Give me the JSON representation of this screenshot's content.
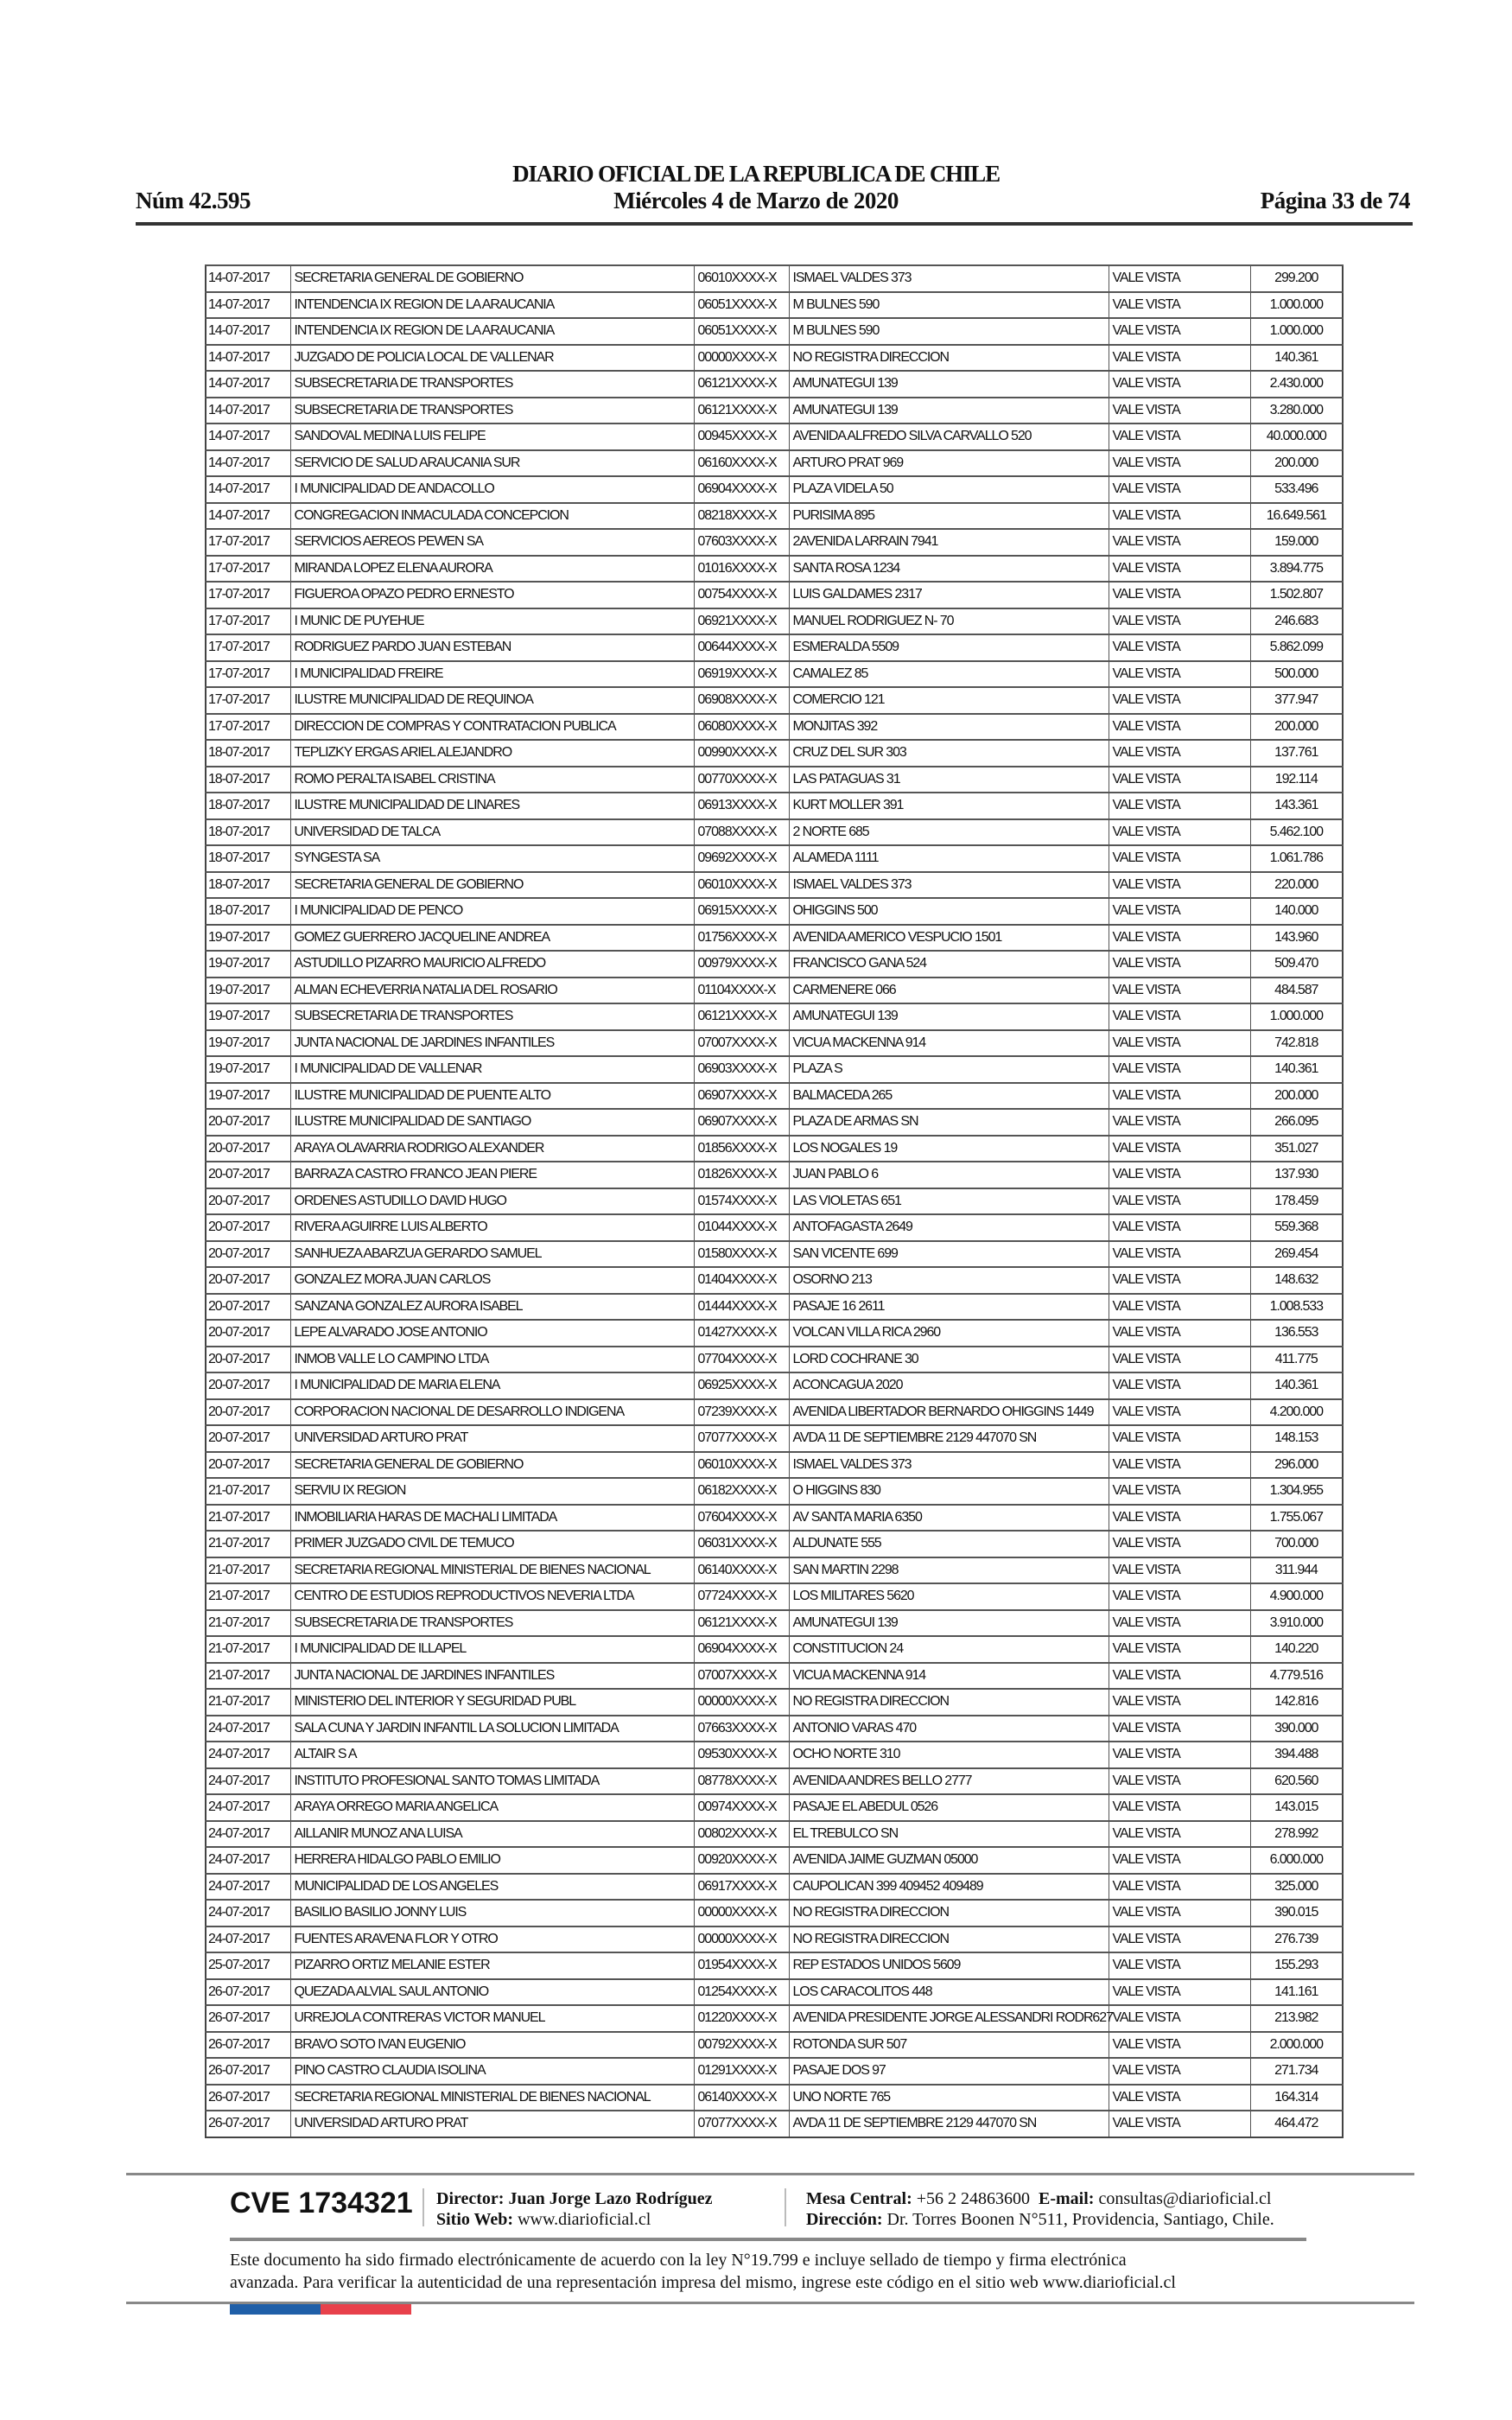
{
  "header": {
    "title": "DIARIO OFICIAL DE LA REPUBLICA DE CHILE",
    "number": "Núm 42.595",
    "date": "Miércoles 4 de Marzo de 2020",
    "page": "Página 33 de 74"
  },
  "table": {
    "rows": [
      [
        "14-07-2017",
        "SECRETARIA GENERAL DE GOBIERNO",
        "06010XXXX-X",
        "ISMAEL VALDES 373",
        "VALE VISTA",
        "299.200"
      ],
      [
        "14-07-2017",
        "INTENDENCIA IX REGION DE LA ARAUCANIA",
        "06051XXXX-X",
        "M BULNES 590",
        "VALE VISTA",
        "1.000.000"
      ],
      [
        "14-07-2017",
        "INTENDENCIA IX REGION DE LA ARAUCANIA",
        "06051XXXX-X",
        "M BULNES 590",
        "VALE VISTA",
        "1.000.000"
      ],
      [
        "14-07-2017",
        "JUZGADO DE POLICIA LOCAL DE VALLENAR",
        "00000XXXX-X",
        "NO REGISTRA DIRECCION",
        "VALE VISTA",
        "140.361"
      ],
      [
        "14-07-2017",
        "SUBSECRETARIA DE TRANSPORTES",
        "06121XXXX-X",
        "AMUNATEGUI 139",
        "VALE VISTA",
        "2.430.000"
      ],
      [
        "14-07-2017",
        "SUBSECRETARIA DE TRANSPORTES",
        "06121XXXX-X",
        "AMUNATEGUI 139",
        "VALE VISTA",
        "3.280.000"
      ],
      [
        "14-07-2017",
        "SANDOVAL MEDINA LUIS FELIPE",
        "00945XXXX-X",
        "AVENIDA ALFREDO SILVA CARVALLO 520",
        "VALE VISTA",
        "40.000.000"
      ],
      [
        "14-07-2017",
        "SERVICIO DE SALUD ARAUCANIA SUR",
        "06160XXXX-X",
        "ARTURO PRAT 969",
        "VALE VISTA",
        "200.000"
      ],
      [
        "14-07-2017",
        "I MUNICIPALIDAD DE ANDACOLLO",
        "06904XXXX-X",
        "PLAZA VIDELA 50",
        "VALE VISTA",
        "533.496"
      ],
      [
        "14-07-2017",
        "CONGREGACION INMACULADA CONCEPCION",
        "08218XXXX-X",
        "PURISIMA 895",
        "VALE VISTA",
        "16.649.561"
      ],
      [
        "17-07-2017",
        "SERVICIOS AEREOS PEWEN SA",
        "07603XXXX-X",
        "2AVENIDA LARRAIN 7941",
        "VALE VISTA",
        "159.000"
      ],
      [
        "17-07-2017",
        "MIRANDA LOPEZ ELENA AURORA",
        "01016XXXX-X",
        "SANTA ROSA 1234",
        "VALE VISTA",
        "3.894.775"
      ],
      [
        "17-07-2017",
        "FIGUEROA OPAZO PEDRO ERNESTO",
        "00754XXXX-X",
        "LUIS GALDAMES 2317",
        "VALE VISTA",
        "1.502.807"
      ],
      [
        "17-07-2017",
        "I MUNIC DE PUYEHUE",
        "06921XXXX-X",
        "MANUEL RODRIGUEZ N- 70",
        "VALE VISTA",
        "246.683"
      ],
      [
        "17-07-2017",
        "RODRIGUEZ PARDO JUAN ESTEBAN",
        "00644XXXX-X",
        "ESMERALDA 5509",
        "VALE VISTA",
        "5.862.099"
      ],
      [
        "17-07-2017",
        "I MUNICIPALIDAD FREIRE",
        "06919XXXX-X",
        "CAMALEZ 85",
        "VALE VISTA",
        "500.000"
      ],
      [
        "17-07-2017",
        "ILUSTRE MUNICIPALIDAD DE REQUINOA",
        "06908XXXX-X",
        "COMERCIO 121",
        "VALE VISTA",
        "377.947"
      ],
      [
        "17-07-2017",
        "DIRECCION DE COMPRAS Y CONTRATACION PUBLICA",
        "06080XXXX-X",
        "MONJITAS 392",
        "VALE VISTA",
        "200.000"
      ],
      [
        "18-07-2017",
        "TEPLIZKY ERGAS ARIEL ALEJANDRO",
        "00990XXXX-X",
        "CRUZ DEL SUR 303",
        "VALE VISTA",
        "137.761"
      ],
      [
        "18-07-2017",
        "ROMO PERALTA ISABEL CRISTINA",
        "00770XXXX-X",
        "LAS PATAGUAS 31",
        "VALE VISTA",
        "192.114"
      ],
      [
        "18-07-2017",
        "ILUSTRE MUNICIPALIDAD DE LINARES",
        "06913XXXX-X",
        "KURT MOLLER 391",
        "VALE VISTA",
        "143.361"
      ],
      [
        "18-07-2017",
        "UNIVERSIDAD DE TALCA",
        "07088XXXX-X",
        "2 NORTE 685",
        "VALE VISTA",
        "5.462.100"
      ],
      [
        "18-07-2017",
        "SYNGESTA SA",
        "09692XXXX-X",
        "ALAMEDA 1111",
        "VALE VISTA",
        "1.061.786"
      ],
      [
        "18-07-2017",
        "SECRETARIA GENERAL DE GOBIERNO",
        "06010XXXX-X",
        "ISMAEL VALDES 373",
        "VALE VISTA",
        "220.000"
      ],
      [
        "18-07-2017",
        "I MUNICIPALIDAD DE PENCO",
        "06915XXXX-X",
        "OHIGGINS 500",
        "VALE VISTA",
        "140.000"
      ],
      [
        "19-07-2017",
        "GOMEZ GUERRERO JACQUELINE ANDREA",
        "01756XXXX-X",
        "AVENIDA AMERICO VESPUCIO 1501",
        "VALE VISTA",
        "143.960"
      ],
      [
        "19-07-2017",
        "ASTUDILLO PIZARRO MAURICIO ALFREDO",
        "00979XXXX-X",
        "FRANCISCO GANA 524",
        "VALE VISTA",
        "509.470"
      ],
      [
        "19-07-2017",
        "ALMAN ECHEVERRIA NATALIA DEL ROSARIO",
        "01104XXXX-X",
        "CARMENERE 066",
        "VALE VISTA",
        "484.587"
      ],
      [
        "19-07-2017",
        "SUBSECRETARIA DE TRANSPORTES",
        "06121XXXX-X",
        "AMUNATEGUI 139",
        "VALE VISTA",
        "1.000.000"
      ],
      [
        "19-07-2017",
        "JUNTA NACIONAL DE JARDINES INFANTILES",
        "07007XXXX-X",
        "VICUA MACKENNA 914",
        "VALE VISTA",
        "742.818"
      ],
      [
        "19-07-2017",
        "I MUNICIPALIDAD DE VALLENAR",
        "06903XXXX-X",
        "PLAZA S",
        "VALE VISTA",
        "140.361"
      ],
      [
        "19-07-2017",
        "ILUSTRE MUNICIPALIDAD DE PUENTE ALTO",
        "06907XXXX-X",
        "BALMACEDA 265",
        "VALE VISTA",
        "200.000"
      ],
      [
        "20-07-2017",
        "ILUSTRE MUNICIPALIDAD DE SANTIAGO",
        "06907XXXX-X",
        "PLAZA DE ARMAS SN",
        "VALE VISTA",
        "266.095"
      ],
      [
        "20-07-2017",
        "ARAYA OLAVARRIA RODRIGO ALEXANDER",
        "01856XXXX-X",
        "LOS NOGALES 19",
        "VALE VISTA",
        "351.027"
      ],
      [
        "20-07-2017",
        "BARRAZA CASTRO FRANCO JEAN PIERE",
        "01826XXXX-X",
        "JUAN PABLO 6",
        "VALE VISTA",
        "137.930"
      ],
      [
        "20-07-2017",
        "ORDENES ASTUDILLO DAVID HUGO",
        "01574XXXX-X",
        "LAS VIOLETAS 651",
        "VALE VISTA",
        "178.459"
      ],
      [
        "20-07-2017",
        "RIVERA AGUIRRE LUIS ALBERTO",
        "01044XXXX-X",
        "ANTOFAGASTA 2649",
        "VALE VISTA",
        "559.368"
      ],
      [
        "20-07-2017",
        "SANHUEZA ABARZUA GERARDO SAMUEL",
        "01580XXXX-X",
        "SAN VICENTE 699",
        "VALE VISTA",
        "269.454"
      ],
      [
        "20-07-2017",
        "GONZALEZ MORA JUAN CARLOS",
        "01404XXXX-X",
        "OSORNO 213",
        "VALE VISTA",
        "148.632"
      ],
      [
        "20-07-2017",
        "SANZANA GONZALEZ AURORA ISABEL",
        "01444XXXX-X",
        "PASAJE 16 2611",
        "VALE VISTA",
        "1.008.533"
      ],
      [
        "20-07-2017",
        "LEPE ALVARADO JOSE ANTONIO",
        "01427XXXX-X",
        "VOLCAN VILLA RICA 2960",
        "VALE VISTA",
        "136.553"
      ],
      [
        "20-07-2017",
        "INMOB VALLE LO CAMPINO LTDA",
        "07704XXXX-X",
        "LORD COCHRANE 30",
        "VALE VISTA",
        "411.775"
      ],
      [
        "20-07-2017",
        "I MUNICIPALIDAD DE MARIA ELENA",
        "06925XXXX-X",
        "ACONCAGUA 2020",
        "VALE VISTA",
        "140.361"
      ],
      [
        "20-07-2017",
        "CORPORACION NACIONAL DE DESARROLLO INDIGENA",
        "07239XXXX-X",
        "AVENIDA LIBERTADOR BERNARDO OHIGGINS 1449",
        "VALE VISTA",
        "4.200.000"
      ],
      [
        "20-07-2017",
        "UNIVERSIDAD ARTURO PRAT",
        "07077XXXX-X",
        "AVDA 11 DE SEPTIEMBRE 2129 447070 SN",
        "VALE VISTA",
        "148.153"
      ],
      [
        "20-07-2017",
        "SECRETARIA GENERAL DE GOBIERNO",
        "06010XXXX-X",
        "ISMAEL VALDES 373",
        "VALE VISTA",
        "296.000"
      ],
      [
        "21-07-2017",
        "SERVIU IX REGION",
        "06182XXXX-X",
        "O HIGGINS 830",
        "VALE VISTA",
        "1.304.955"
      ],
      [
        "21-07-2017",
        "INMOBILIARIA HARAS DE MACHALI LIMITADA",
        "07604XXXX-X",
        "AV SANTA MARIA 6350",
        "VALE VISTA",
        "1.755.067"
      ],
      [
        "21-07-2017",
        "PRIMER JUZGADO CIVIL DE TEMUCO",
        "06031XXXX-X",
        "ALDUNATE 555",
        "VALE VISTA",
        "700.000"
      ],
      [
        "21-07-2017",
        "SECRETARIA REGIONAL MINISTERIAL DE BIENES NACIONAL",
        "06140XXXX-X",
        "SAN MARTIN 2298",
        "VALE VISTA",
        "311.944"
      ],
      [
        "21-07-2017",
        "CENTRO DE ESTUDIOS REPRODUCTIVOS NEVERIA LTDA",
        "07724XXXX-X",
        "LOS MILITARES 5620",
        "VALE VISTA",
        "4.900.000"
      ],
      [
        "21-07-2017",
        "SUBSECRETARIA DE TRANSPORTES",
        "06121XXXX-X",
        "AMUNATEGUI 139",
        "VALE VISTA",
        "3.910.000"
      ],
      [
        "21-07-2017",
        "I MUNICIPALIDAD DE ILLAPEL",
        "06904XXXX-X",
        "CONSTITUCION 24",
        "VALE VISTA",
        "140.220"
      ],
      [
        "21-07-2017",
        "JUNTA NACIONAL DE JARDINES INFANTILES",
        "07007XXXX-X",
        "VICUA MACKENNA 914",
        "VALE VISTA",
        "4.779.516"
      ],
      [
        "21-07-2017",
        "MINISTERIO DEL INTERIOR Y SEGURIDAD PUBL",
        "00000XXXX-X",
        "NO REGISTRA DIRECCION",
        "VALE VISTA",
        "142.816"
      ],
      [
        "24-07-2017",
        "SALA CUNA Y JARDIN INFANTIL LA SOLUCION LIMITADA",
        "07663XXXX-X",
        "ANTONIO VARAS 470",
        "VALE VISTA",
        "390.000"
      ],
      [
        "24-07-2017",
        "ALTAIR S A",
        "09530XXXX-X",
        "OCHO NORTE 310",
        "VALE VISTA",
        "394.488"
      ],
      [
        "24-07-2017",
        "INSTITUTO PROFESIONAL SANTO TOMAS LIMITADA",
        "08778XXXX-X",
        "AVENIDA ANDRES BELLO 2777",
        "VALE VISTA",
        "620.560"
      ],
      [
        "24-07-2017",
        "ARAYA ORREGO MARIA ANGELICA",
        "00974XXXX-X",
        "PASAJE EL ABEDUL 0526",
        "VALE VISTA",
        "143.015"
      ],
      [
        "24-07-2017",
        "AILLANIR MUNOZ ANA LUISA",
        "00802XXXX-X",
        "EL TREBULCO SN",
        "VALE VISTA",
        "278.992"
      ],
      [
        "24-07-2017",
        "HERRERA HIDALGO PABLO EMILIO",
        "00920XXXX-X",
        "AVENIDA JAIME GUZMAN 05000",
        "VALE VISTA",
        "6.000.000"
      ],
      [
        "24-07-2017",
        "MUNICIPALIDAD DE LOS ANGELES",
        "06917XXXX-X",
        "CAUPOLICAN 399 409452 409489",
        "VALE VISTA",
        "325.000"
      ],
      [
        "24-07-2017",
        "BASILIO BASILIO JONNY LUIS",
        "00000XXXX-X",
        "NO REGISTRA DIRECCION",
        "VALE VISTA",
        "390.015"
      ],
      [
        "24-07-2017",
        "FUENTES ARAVENA FLOR Y OTRO",
        "00000XXXX-X",
        "NO REGISTRA DIRECCION",
        "VALE VISTA",
        "276.739"
      ],
      [
        "25-07-2017",
        "PIZARRO ORTIZ MELANIE ESTER",
        "01954XXXX-X",
        "REP ESTADOS UNIDOS 5609",
        "VALE VISTA",
        "155.293"
      ],
      [
        "26-07-2017",
        "QUEZADA ALVIAL SAUL ANTONIO",
        "01254XXXX-X",
        "LOS CARACOLITOS 448",
        "VALE VISTA",
        "141.161"
      ],
      [
        "26-07-2017",
        "URREJOLA CONTRERAS VICTOR MANUEL",
        "01220XXXX-X",
        "AVENIDA PRESIDENTE JORGE ALESSANDRI RODR627",
        "VALE VISTA",
        "213.982"
      ],
      [
        "26-07-2017",
        "BRAVO SOTO IVAN EUGENIO",
        "00792XXXX-X",
        "ROTONDA SUR 507",
        "VALE VISTA",
        "2.000.000"
      ],
      [
        "26-07-2017",
        "PINO CASTRO CLAUDIA ISOLINA",
        "01291XXXX-X",
        "PASAJE DOS 97",
        "VALE VISTA",
        "271.734"
      ],
      [
        "26-07-2017",
        "SECRETARIA REGIONAL MINISTERIAL DE BIENES NACIONAL",
        "06140XXXX-X",
        "UNO NORTE 765",
        "VALE VISTA",
        "164.314"
      ],
      [
        "26-07-2017",
        "UNIVERSIDAD ARTURO PRAT",
        "07077XXXX-X",
        "AVDA 11 DE SEPTIEMBRE 2129 447070 SN",
        "VALE VISTA",
        "464.472"
      ]
    ]
  },
  "footer": {
    "cve": "CVE 1734321",
    "director_label": "Director:",
    "director_name": "Juan Jorge Lazo Rodríguez",
    "website_label": "Sitio Web:",
    "website": "www.diarioficial.cl",
    "phone_label": "Mesa Central:",
    "phone": "+56 2 24863600",
    "email_label": "E-mail:",
    "email": "consultas@diarioficial.cl",
    "address_label": "Dirección:",
    "address": "Dr. Torres Boonen N°511, Providencia, Santiago, Chile.",
    "legal_line1": "Este documento ha sido firmado electrónicamente de acuerdo con la ley N°19.799 e incluye sellado de tiempo y firma electrónica",
    "legal_line2": "avanzada. Para verificar la autenticidad de una representación impresa del mismo, ingrese este código en el sitio web www.diarioficial.cl"
  },
  "colors": {
    "flag_blue": "#1f5fa8",
    "flag_red": "#e8414b"
  }
}
